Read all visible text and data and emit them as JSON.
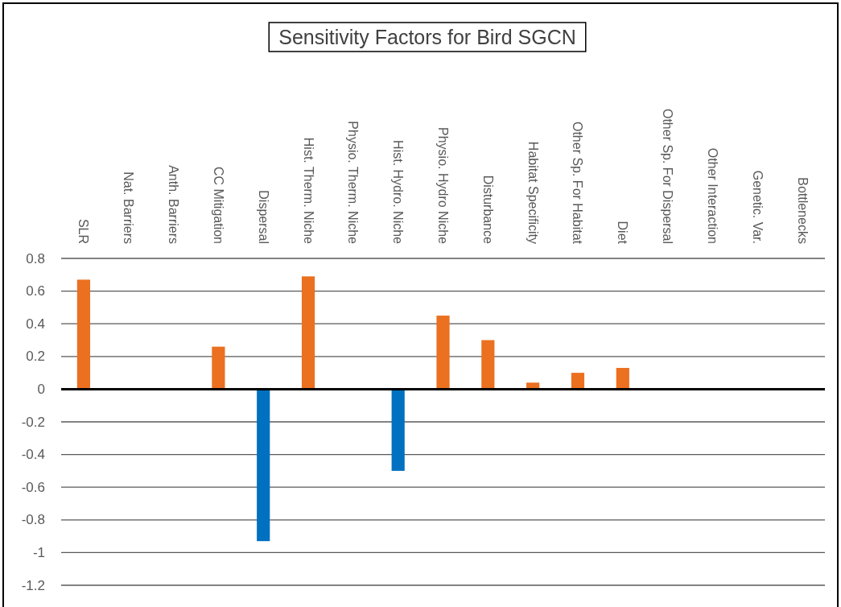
{
  "chart_data": {
    "type": "bar",
    "title": "Sensitivity Factors for Bird SGCN",
    "categories": [
      "SLR",
      "Nat. Barriers",
      "Anth. Barriers",
      "CC Mitigation",
      "Dispersal",
      "Hist. Therm. Niche",
      "Physio. Therm. Niche",
      "Hist. Hydro. Niche",
      "Physio. Hydro Niche",
      "Disturbance",
      "Habitat Specificity",
      "Other Sp. For Habitat",
      "Diet",
      "Other Sp. For Dispersal",
      "Other Interaction",
      "Genetic. Var.",
      "Bottlenecks"
    ],
    "values": [
      0.67,
      null,
      null,
      0.26,
      -0.93,
      0.69,
      null,
      -0.5,
      0.45,
      0.3,
      0.04,
      0.1,
      0.13,
      null,
      null,
      null,
      null
    ],
    "colors": [
      "#eb7020",
      null,
      null,
      "#eb7020",
      "#0070c0",
      "#eb7020",
      null,
      "#0070c0",
      "#eb7020",
      "#eb7020",
      "#eb7020",
      "#eb7020",
      "#eb7020",
      null,
      null,
      null,
      null
    ],
    "ylim": [
      -1.2,
      0.8
    ],
    "yticks": [
      0.8,
      0.6,
      0.4,
      0.2,
      0,
      -0.2,
      -0.4,
      -0.6,
      -0.8,
      -1,
      -1.2
    ],
    "grid": true
  }
}
